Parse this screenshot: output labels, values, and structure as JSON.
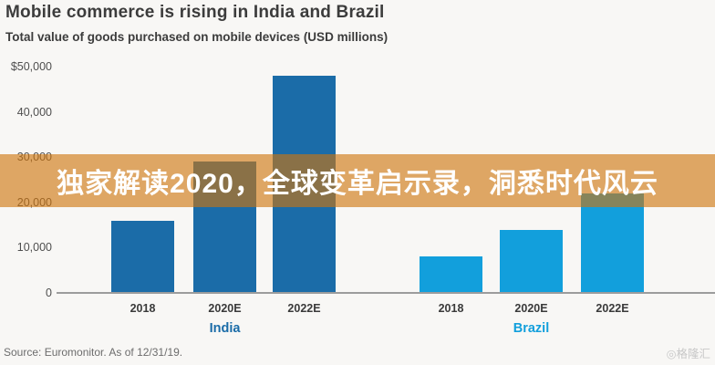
{
  "title": "Mobile commerce is rising in India and Brazil",
  "subtitle": "Total value of goods purchased on mobile devices (USD millions)",
  "overlay_banner": {
    "text": "独家解读2020，全球变革启示录，洞悉时代风云",
    "bg_color": "#ce740c",
    "opacity": 0.62,
    "text_color": "#ffffff"
  },
  "chart_data": {
    "type": "bar",
    "title": "Mobile commerce is rising in India and Brazil",
    "subtitle": "Total value of goods purchased on mobile devices (USD millions)",
    "categories": [
      "2018",
      "2020E",
      "2022E"
    ],
    "groups": [
      {
        "name": "India",
        "color": "#1b6ca8",
        "values": [
          16000,
          29000,
          48000
        ]
      },
      {
        "name": "Brazil",
        "color": "#129fdc",
        "values": [
          8000,
          14000,
          22000
        ]
      }
    ],
    "ylim": [
      0,
      50000
    ],
    "ytick_interval": 10000,
    "yticks": [
      "$50,000",
      "40,000",
      "30,000",
      "20,000",
      "10,000",
      "0"
    ],
    "grid": false,
    "legend_position": "group-labels-below-axis"
  },
  "source": "Source: Euromonitor. As of 12/31/19.",
  "watermark": "◎格隆汇"
}
